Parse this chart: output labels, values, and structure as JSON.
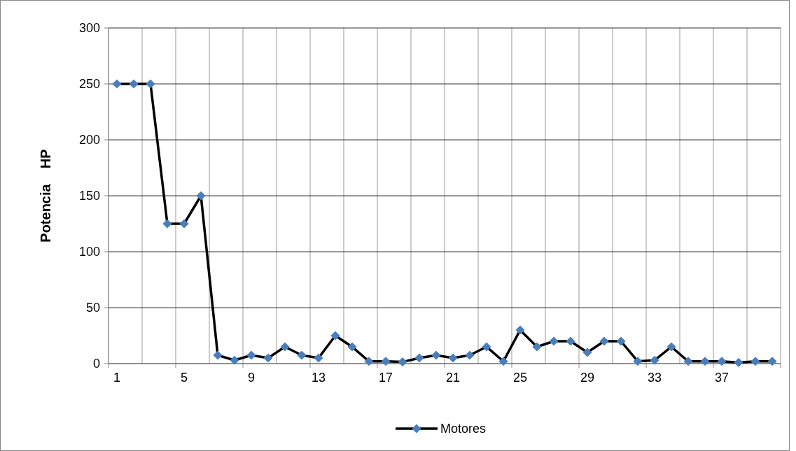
{
  "chart_data": {
    "type": "line",
    "ylabel": "Potencia    HP",
    "categories": [
      "1",
      null,
      null,
      null,
      "5",
      null,
      null,
      null,
      "9",
      null,
      null,
      null,
      "13",
      null,
      null,
      null,
      "17",
      null,
      null,
      null,
      "21",
      null,
      null,
      null,
      "25",
      null,
      null,
      null,
      "29",
      null,
      null,
      null,
      "33",
      null,
      null,
      null,
      "37",
      null,
      null,
      null
    ],
    "series": [
      {
        "name": "Motores",
        "color": "#4a7ebb",
        "values": [
          250,
          250,
          250,
          125,
          125,
          150,
          7.5,
          3,
          7.5,
          5,
          15,
          7.5,
          5,
          25,
          15,
          2,
          2,
          1.5,
          5,
          7.5,
          5,
          7.5,
          15,
          2,
          30,
          15,
          20,
          20,
          10,
          20,
          20,
          2,
          3,
          15,
          2,
          2,
          2,
          1,
          2,
          2
        ]
      }
    ],
    "ylim": [
      0,
      300
    ],
    "yticks": [
      0,
      50,
      100,
      150,
      200,
      250,
      300
    ],
    "grid": true,
    "legend": "bottom",
    "marker": "diamond",
    "line_style": "solid"
  }
}
